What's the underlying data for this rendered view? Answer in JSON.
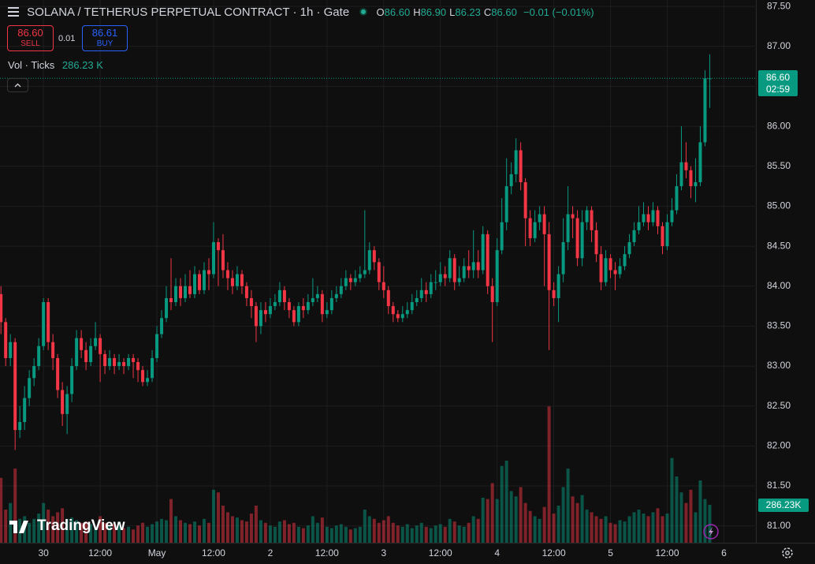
{
  "header": {
    "title": "SOLANA / TETHERUS PERPETUAL CONTRACT · 1h · Gate",
    "ohlc": [
      {
        "key": "O",
        "value": "86.60"
      },
      {
        "key": "H",
        "value": "86.90"
      },
      {
        "key": "L",
        "value": "86.23"
      },
      {
        "key": "C",
        "value": "86.60"
      }
    ],
    "change": "−0.01 (−0.01%)",
    "sell_price": "86.60",
    "sell_label": "SELL",
    "spread": "0.01",
    "buy_price": "86.61",
    "buy_label": "BUY",
    "volume_title": "Vol · Ticks",
    "volume_value": "286.23 K",
    "price_badge": "86.60",
    "countdown": "02:59",
    "volume_badge": "286.23K",
    "brand": "TradingView"
  },
  "chart_data": {
    "type": "candlestick",
    "up_color": "#089981",
    "down_color": "#f23645",
    "grid": true,
    "ylim": [
      80.79,
      87.58
    ],
    "yticks": [
      {
        "value": 81,
        "label": "81.00"
      },
      {
        "value": 81.5,
        "label": "81.50"
      },
      {
        "value": 82,
        "label": "82.00"
      },
      {
        "value": 82.5,
        "label": "82.50"
      },
      {
        "value": 83,
        "label": "83.00"
      },
      {
        "value": 83.5,
        "label": "83.50"
      },
      {
        "value": 84,
        "label": "84.00"
      },
      {
        "value": 84.5,
        "label": "84.50"
      },
      {
        "value": 85,
        "label": "85.00"
      },
      {
        "value": 85.5,
        "label": "85.50"
      },
      {
        "value": 86,
        "label": "86.00"
      },
      {
        "value": 86.5,
        "label": "86.50"
      },
      {
        "value": 87,
        "label": "87.00"
      },
      {
        "value": 87.5,
        "label": "87.50"
      }
    ],
    "xlim": [
      -0.2,
      159.6
    ],
    "xticks": [
      {
        "value": 9,
        "label": "30"
      },
      {
        "value": 21,
        "label": "12:00"
      },
      {
        "value": 33,
        "label": "May"
      },
      {
        "value": 45,
        "label": "12:00"
      },
      {
        "value": 57,
        "label": "2"
      },
      {
        "value": 69,
        "label": "12:00"
      },
      {
        "value": 81,
        "label": "3"
      },
      {
        "value": 93,
        "label": "12:00"
      },
      {
        "value": 105,
        "label": "4"
      },
      {
        "value": 117,
        "label": "12:00"
      },
      {
        "value": 129,
        "label": "5"
      },
      {
        "value": 141,
        "label": "12:00"
      },
      {
        "value": 153,
        "label": "6"
      }
    ],
    "candles": [
      [
        83.9,
        84.0,
        83.4,
        83.55
      ],
      [
        83.55,
        83.6,
        83.0,
        83.1
      ],
      [
        83.1,
        83.4,
        83.0,
        83.3
      ],
      [
        83.3,
        83.35,
        81.95,
        82.2
      ],
      [
        82.2,
        82.5,
        82.1,
        82.3
      ],
      [
        82.3,
        82.75,
        82.2,
        82.6
      ],
      [
        82.6,
        82.95,
        82.5,
        82.85
      ],
      [
        82.85,
        83.1,
        82.75,
        83.0
      ],
      [
        83.0,
        83.35,
        82.95,
        83.25
      ],
      [
        83.25,
        83.85,
        83.2,
        83.8
      ],
      [
        83.8,
        83.85,
        83.2,
        83.3
      ],
      [
        83.3,
        83.4,
        82.95,
        83.1
      ],
      [
        83.1,
        83.15,
        82.6,
        82.7
      ],
      [
        82.7,
        82.8,
        82.25,
        82.4
      ],
      [
        82.4,
        82.75,
        82.15,
        82.65
      ],
      [
        82.65,
        83.1,
        82.55,
        83.0
      ],
      [
        83.0,
        83.45,
        82.95,
        83.35
      ],
      [
        83.35,
        83.45,
        83.1,
        83.2
      ],
      [
        83.2,
        83.3,
        82.95,
        83.05
      ],
      [
        83.05,
        83.35,
        83.0,
        83.25
      ],
      [
        83.25,
        83.55,
        83.2,
        83.35
      ],
      [
        83.35,
        83.4,
        82.8,
        83.15
      ],
      [
        83.15,
        83.2,
        82.9,
        83.0
      ],
      [
        83.0,
        83.2,
        82.95,
        83.1
      ],
      [
        83.1,
        83.15,
        82.9,
        83.0
      ],
      [
        83.0,
        83.15,
        82.95,
        83.05
      ],
      [
        83.05,
        83.1,
        82.9,
        83.0
      ],
      [
        83.0,
        83.15,
        82.95,
        83.1
      ],
      [
        83.1,
        83.15,
        82.85,
        83.05
      ],
      [
        83.05,
        83.1,
        82.8,
        82.95
      ],
      [
        82.95,
        83.0,
        82.75,
        82.8
      ],
      [
        82.8,
        82.95,
        82.75,
        82.85
      ],
      [
        82.85,
        83.2,
        82.8,
        83.1
      ],
      [
        83.1,
        83.5,
        83.05,
        83.4
      ],
      [
        83.4,
        83.7,
        83.35,
        83.6
      ],
      [
        83.6,
        84.0,
        83.55,
        83.85
      ],
      [
        83.85,
        84.35,
        83.7,
        83.8
      ],
      [
        83.8,
        84.1,
        83.75,
        84.0
      ],
      [
        84.0,
        84.1,
        83.75,
        83.85
      ],
      [
        83.85,
        84.15,
        83.8,
        84.0
      ],
      [
        84.0,
        84.2,
        83.85,
        83.9
      ],
      [
        83.9,
        84.25,
        83.85,
        84.15
      ],
      [
        84.15,
        84.2,
        83.9,
        83.95
      ],
      [
        83.95,
        84.3,
        83.9,
        84.2
      ],
      [
        84.2,
        84.35,
        83.95,
        84.15
      ],
      [
        84.15,
        84.8,
        84.1,
        84.55
      ],
      [
        84.55,
        84.6,
        84.0,
        84.45
      ],
      [
        84.45,
        84.65,
        84.1,
        84.2
      ],
      [
        84.2,
        84.3,
        83.95,
        84.1
      ],
      [
        84.1,
        84.2,
        83.9,
        84.0
      ],
      [
        84.0,
        84.25,
        83.95,
        84.15
      ],
      [
        84.15,
        84.2,
        83.9,
        84.0
      ],
      [
        84.0,
        84.05,
        83.75,
        83.85
      ],
      [
        83.85,
        83.95,
        83.6,
        83.75
      ],
      [
        83.75,
        83.8,
        83.3,
        83.5
      ],
      [
        83.5,
        83.8,
        83.4,
        83.7
      ],
      [
        83.7,
        83.8,
        83.55,
        83.65
      ],
      [
        83.65,
        83.85,
        83.6,
        83.75
      ],
      [
        83.75,
        83.9,
        83.7,
        83.8
      ],
      [
        83.8,
        84.05,
        83.75,
        83.95
      ],
      [
        83.95,
        84.0,
        83.7,
        83.8
      ],
      [
        83.8,
        83.85,
        83.6,
        83.7
      ],
      [
        83.7,
        83.75,
        83.5,
        83.55
      ],
      [
        83.55,
        83.8,
        83.5,
        83.75
      ],
      [
        83.75,
        83.85,
        83.6,
        83.7
      ],
      [
        83.7,
        83.9,
        83.65,
        83.8
      ],
      [
        83.8,
        84.1,
        83.75,
        83.85
      ],
      [
        83.85,
        84.0,
        83.8,
        83.9
      ],
      [
        83.9,
        83.95,
        83.55,
        83.65
      ],
      [
        83.65,
        83.8,
        83.6,
        83.7
      ],
      [
        83.7,
        83.95,
        83.65,
        83.85
      ],
      [
        83.85,
        84.0,
        83.8,
        83.9
      ],
      [
        83.9,
        84.1,
        83.85,
        84.0
      ],
      [
        84.0,
        84.2,
        83.95,
        84.1
      ],
      [
        84.1,
        84.15,
        83.95,
        84.05
      ],
      [
        84.05,
        84.2,
        84.0,
        84.1
      ],
      [
        84.1,
        84.25,
        84.05,
        84.15
      ],
      [
        84.15,
        84.95,
        84.1,
        84.2
      ],
      [
        84.2,
        84.55,
        84.15,
        84.45
      ],
      [
        84.45,
        84.5,
        84.2,
        84.3
      ],
      [
        84.3,
        84.35,
        83.95,
        84.05
      ],
      [
        84.05,
        84.25,
        83.85,
        83.95
      ],
      [
        83.95,
        84.0,
        83.65,
        83.75
      ],
      [
        83.75,
        83.8,
        83.55,
        83.65
      ],
      [
        83.65,
        83.7,
        83.55,
        83.6
      ],
      [
        83.6,
        83.75,
        83.55,
        83.65
      ],
      [
        83.65,
        83.8,
        83.6,
        83.7
      ],
      [
        83.7,
        83.9,
        83.65,
        83.8
      ],
      [
        83.8,
        83.95,
        83.75,
        83.85
      ],
      [
        83.85,
        84.1,
        83.8,
        83.95
      ],
      [
        83.95,
        84.05,
        83.8,
        83.9
      ],
      [
        83.9,
        84.15,
        83.85,
        84.05
      ],
      [
        84.05,
        84.2,
        83.95,
        84.05
      ],
      [
        84.05,
        84.3,
        84.0,
        84.15
      ],
      [
        84.15,
        84.25,
        84.0,
        84.1
      ],
      [
        84.1,
        84.45,
        84.05,
        84.35
      ],
      [
        84.35,
        84.4,
        83.95,
        84.05
      ],
      [
        84.05,
        84.25,
        84.0,
        84.1
      ],
      [
        84.1,
        84.35,
        84.05,
        84.25
      ],
      [
        84.25,
        84.45,
        84.1,
        84.2
      ],
      [
        84.2,
        84.7,
        84.1,
        84.3
      ],
      [
        84.3,
        84.45,
        84.1,
        84.2
      ],
      [
        84.2,
        84.75,
        84.15,
        84.65
      ],
      [
        84.65,
        84.7,
        83.9,
        84.0
      ],
      [
        84.0,
        84.1,
        83.3,
        83.8
      ],
      [
        83.8,
        84.6,
        83.75,
        84.45
      ],
      [
        84.45,
        85.1,
        84.4,
        84.8
      ],
      [
        84.8,
        85.6,
        84.7,
        85.25
      ],
      [
        85.25,
        85.55,
        85.15,
        85.4
      ],
      [
        85.4,
        85.85,
        85.3,
        85.7
      ],
      [
        85.7,
        85.8,
        85.2,
        85.3
      ],
      [
        85.3,
        85.35,
        84.5,
        84.85
      ],
      [
        84.85,
        84.95,
        84.5,
        84.6
      ],
      [
        84.6,
        84.95,
        84.55,
        84.8
      ],
      [
        84.8,
        85.0,
        84.7,
        84.9
      ],
      [
        84.9,
        85.0,
        84.0,
        84.65
      ],
      [
        84.65,
        84.8,
        83.2,
        83.95
      ],
      [
        83.95,
        84.05,
        83.75,
        83.85
      ],
      [
        83.85,
        84.25,
        83.55,
        84.15
      ],
      [
        84.15,
        84.85,
        84.05,
        84.55
      ],
      [
        84.55,
        85.25,
        84.45,
        84.9
      ],
      [
        84.9,
        85.0,
        84.6,
        84.85
      ],
      [
        84.85,
        84.95,
        84.25,
        84.35
      ],
      [
        84.35,
        84.95,
        84.25,
        84.8
      ],
      [
        84.8,
        85.0,
        84.7,
        84.95
      ],
      [
        84.95,
        85.0,
        84.55,
        84.7
      ],
      [
        84.7,
        84.8,
        84.3,
        84.4
      ],
      [
        84.4,
        84.5,
        83.95,
        84.05
      ],
      [
        84.05,
        84.45,
        84.0,
        84.35
      ],
      [
        84.35,
        84.4,
        84.1,
        84.2
      ],
      [
        84.2,
        84.3,
        83.95,
        84.15
      ],
      [
        84.15,
        84.35,
        84.1,
        84.25
      ],
      [
        84.25,
        84.5,
        84.2,
        84.4
      ],
      [
        84.4,
        84.65,
        84.35,
        84.55
      ],
      [
        84.55,
        84.8,
        84.5,
        84.7
      ],
      [
        84.7,
        85.0,
        84.65,
        84.8
      ],
      [
        84.8,
        85.05,
        84.75,
        84.9
      ],
      [
        84.9,
        85.0,
        84.7,
        84.8
      ],
      [
        84.8,
        85.05,
        84.75,
        84.95
      ],
      [
        84.95,
        85.0,
        84.65,
        84.75
      ],
      [
        84.75,
        84.8,
        84.4,
        84.5
      ],
      [
        84.5,
        84.9,
        84.45,
        84.8
      ],
      [
        84.8,
        85.1,
        84.75,
        84.95
      ],
      [
        84.95,
        85.4,
        84.9,
        85.25
      ],
      [
        85.25,
        86.0,
        85.2,
        85.55
      ],
      [
        85.55,
        85.8,
        85.35,
        85.45
      ],
      [
        85.45,
        85.5,
        85.1,
        85.25
      ],
      [
        85.25,
        85.6,
        85.05,
        85.3
      ],
      [
        85.3,
        86.0,
        85.25,
        85.8
      ],
      [
        85.8,
        86.7,
        85.75,
        86.6
      ],
      [
        86.6,
        86.9,
        86.23,
        86.6
      ]
    ],
    "volumes": [
      490000,
      250000,
      300000,
      560000,
      180000,
      200000,
      150000,
      180000,
      220000,
      300000,
      250000,
      200000,
      230000,
      260000,
      180000,
      190000,
      170000,
      150000,
      160000,
      140000,
      120000,
      200000,
      150000,
      130000,
      140000,
      160000,
      110000,
      120000,
      100000,
      130000,
      150000,
      120000,
      140000,
      160000,
      180000,
      170000,
      330000,
      200000,
      170000,
      150000,
      140000,
      160000,
      130000,
      180000,
      150000,
      400000,
      380000,
      280000,
      230000,
      200000,
      190000,
      170000,
      160000,
      220000,
      280000,
      170000,
      150000,
      130000,
      120000,
      160000,
      170000,
      140000,
      150000,
      120000,
      110000,
      130000,
      200000,
      150000,
      190000,
      120000,
      110000,
      130000,
      140000,
      120000,
      100000,
      110000,
      120000,
      250000,
      200000,
      180000,
      150000,
      170000,
      200000,
      150000,
      130000,
      120000,
      140000,
      110000,
      130000,
      150000,
      120000,
      110000,
      130000,
      140000,
      120000,
      180000,
      160000,
      130000,
      120000,
      150000,
      200000,
      180000,
      340000,
      330000,
      450000,
      330000,
      580000,
      620000,
      390000,
      350000,
      420000,
      300000,
      240000,
      200000,
      180000,
      270000,
      1030000,
      220000,
      280000,
      420000,
      560000,
      350000,
      300000,
      360000,
      250000,
      230000,
      200000,
      180000,
      200000,
      150000,
      140000,
      170000,
      160000,
      200000,
      230000,
      250000,
      220000,
      200000,
      230000,
      260000,
      200000,
      220000,
      640000,
      500000,
      380000,
      300000,
      400000,
      230000,
      470000,
      330000,
      286230
    ]
  }
}
